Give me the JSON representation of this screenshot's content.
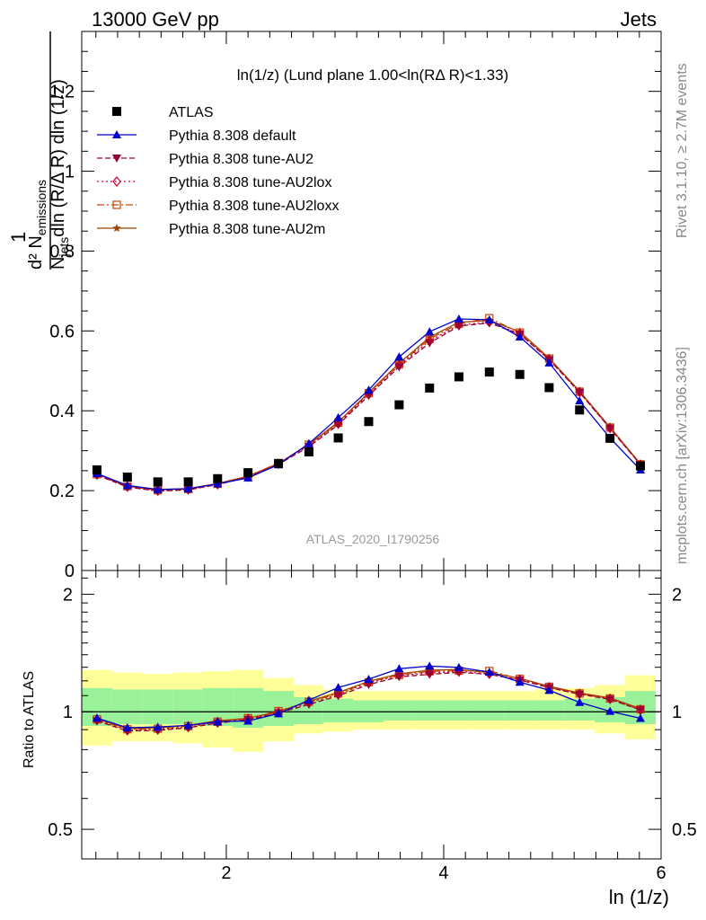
{
  "header": {
    "energy_label": "13000 GeV pp",
    "process_label": "Jets"
  },
  "side_labels": {
    "rivet": "Rivet 3.1.10, ≥ 2.7M events",
    "mcplots": "mcplots.cern.ch [arXiv:1306.3436]"
  },
  "chart_data": [
    {
      "type": "scatter",
      "title": "ln(1/z) (Lund plane 1.00<ln(RΔ R)<1.33)",
      "watermark": "ATLAS_2020_I1790256",
      "ylabel": "1/N_jets d²N_emissions/dln(R/Δ R) dln(1/z)",
      "xlabel": "ln (1/z)",
      "xlim": [
        0.67,
        6.0
      ],
      "ylim": [
        0,
        1.35
      ],
      "yticks": [
        0,
        0.2,
        0.4,
        0.6,
        0.8,
        1,
        1.2
      ],
      "ytick_labels": [
        "0",
        "0.2",
        "0.4",
        "0.6",
        "0.8",
        "1",
        "1.2"
      ],
      "legend_position": "top-left",
      "x": [
        0.81,
        1.09,
        1.37,
        1.65,
        1.92,
        2.2,
        2.48,
        2.76,
        3.03,
        3.31,
        3.59,
        3.87,
        4.14,
        4.42,
        4.7,
        4.97,
        5.25,
        5.53,
        5.81
      ],
      "series": [
        {
          "name": "ATLAS",
          "color": "#000000",
          "marker": "square",
          "line": "none",
          "values": [
            0.252,
            0.234,
            0.222,
            0.222,
            0.23,
            0.245,
            0.268,
            0.297,
            0.332,
            0.373,
            0.415,
            0.457,
            0.485,
            0.497,
            0.491,
            0.458,
            0.402,
            0.331,
            0.262
          ]
        },
        {
          "name": "Pythia 8.308 default",
          "color": "#0000cc",
          "marker": "triangle-up",
          "line": "solid",
          "values": [
            0.243,
            0.213,
            0.203,
            0.205,
            0.217,
            0.232,
            0.265,
            0.318,
            0.383,
            0.452,
            0.535,
            0.598,
            0.63,
            0.628,
            0.585,
            0.52,
            0.425,
            0.332,
            0.252
          ]
        },
        {
          "name": "Pythia 8.308 tune-AU2",
          "color": "#990033",
          "marker": "triangle-down",
          "line": "dashed",
          "values": [
            0.239,
            0.209,
            0.199,
            0.202,
            0.215,
            0.234,
            0.266,
            0.31,
            0.365,
            0.438,
            0.51,
            0.57,
            0.612,
            0.62,
            0.592,
            0.528,
            0.446,
            0.356,
            0.265
          ]
        },
        {
          "name": "Pythia 8.308 tune-AU2lox",
          "color": "#cc0033",
          "marker": "diamond-open",
          "line": "dotted",
          "values": [
            0.24,
            0.21,
            0.2,
            0.203,
            0.216,
            0.235,
            0.267,
            0.313,
            0.368,
            0.442,
            0.514,
            0.575,
            0.615,
            0.622,
            0.593,
            0.529,
            0.447,
            0.357,
            0.265
          ]
        },
        {
          "name": "Pythia 8.308 tune-AU2loxx",
          "color": "#cc4400",
          "marker": "square-open",
          "line": "dash-dot",
          "values": [
            0.241,
            0.211,
            0.201,
            0.204,
            0.217,
            0.236,
            0.269,
            0.315,
            0.37,
            0.444,
            0.516,
            0.58,
            0.618,
            0.632,
            0.596,
            0.531,
            0.448,
            0.358,
            0.266
          ]
        },
        {
          "name": "Pythia 8.308 tune-AU2m",
          "color": "#994400",
          "marker": "star",
          "line": "solid",
          "values": [
            0.242,
            0.212,
            0.202,
            0.205,
            0.218,
            0.236,
            0.268,
            0.316,
            0.372,
            0.446,
            0.519,
            0.584,
            0.622,
            0.626,
            0.598,
            0.532,
            0.449,
            0.359,
            0.267
          ]
        }
      ]
    },
    {
      "type": "line",
      "ylabel": "Ratio to ATLAS",
      "xlabel": "ln (1/z)",
      "xlim": [
        0.67,
        6.0
      ],
      "ylim": [
        0.42,
        2.3
      ],
      "log_y": true,
      "yticks": [
        0.5,
        1,
        2
      ],
      "ytick_labels": [
        "0.5",
        "1",
        "2"
      ],
      "xticks": [
        2,
        4,
        6
      ],
      "xtick_labels": [
        "2",
        "4",
        "6"
      ],
      "reference_line": 1,
      "band_edges": [
        0.67,
        0.95,
        1.23,
        1.51,
        1.78,
        2.06,
        2.34,
        2.62,
        2.89,
        3.17,
        3.45,
        3.73,
        4.0,
        4.28,
        4.56,
        4.84,
        5.11,
        5.39,
        5.67,
        5.95
      ],
      "bands": [
        {
          "name": "stat",
          "color": "#99f299",
          "lo": [
            0.92,
            0.93,
            0.93,
            0.93,
            0.92,
            0.91,
            0.92,
            0.93,
            0.94,
            0.94,
            0.95,
            0.95,
            0.95,
            0.95,
            0.95,
            0.95,
            0.95,
            0.94,
            0.93
          ],
          "hi": [
            1.15,
            1.14,
            1.14,
            1.14,
            1.15,
            1.15,
            1.13,
            1.09,
            1.08,
            1.07,
            1.07,
            1.07,
            1.07,
            1.07,
            1.07,
            1.07,
            1.08,
            1.09,
            1.13
          ]
        },
        {
          "name": "syst",
          "color": "#ffff99",
          "lo": [
            0.82,
            0.84,
            0.84,
            0.83,
            0.81,
            0.79,
            0.84,
            0.88,
            0.89,
            0.9,
            0.9,
            0.9,
            0.9,
            0.9,
            0.9,
            0.9,
            0.9,
            0.88,
            0.85
          ],
          "hi": [
            1.28,
            1.26,
            1.25,
            1.26,
            1.27,
            1.28,
            1.22,
            1.17,
            1.14,
            1.13,
            1.13,
            1.13,
            1.13,
            1.13,
            1.13,
            1.14,
            1.15,
            1.17,
            1.24
          ]
        }
      ],
      "series": [
        {
          "name": "Pythia 8.308 default",
          "values": [
            0.964,
            0.91,
            0.914,
            0.923,
            0.943,
            0.947,
            0.989,
            1.071,
            1.154,
            1.212,
            1.289,
            1.309,
            1.299,
            1.264,
            1.191,
            1.135,
            1.057,
            1.003,
            0.962
          ]
        },
        {
          "name": "Pythia 8.308 tune-AU2",
          "values": [
            0.948,
            0.893,
            0.896,
            0.91,
            0.935,
            0.955,
            0.993,
            1.044,
            1.099,
            1.174,
            1.229,
            1.247,
            1.262,
            1.247,
            1.206,
            1.153,
            1.109,
            1.076,
            1.011
          ]
        },
        {
          "name": "Pythia 8.308 tune-AU2lox",
          "values": [
            0.952,
            0.897,
            0.901,
            0.914,
            0.939,
            0.959,
            0.996,
            1.054,
            1.108,
            1.185,
            1.239,
            1.258,
            1.268,
            1.251,
            1.208,
            1.155,
            1.112,
            1.079,
            1.011
          ]
        },
        {
          "name": "Pythia 8.308 tune-AU2loxx",
          "values": [
            0.956,
            0.902,
            0.905,
            0.919,
            0.943,
            0.963,
            1.004,
            1.061,
            1.114,
            1.19,
            1.243,
            1.269,
            1.274,
            1.272,
            1.214,
            1.159,
            1.114,
            1.082,
            1.015
          ]
        },
        {
          "name": "Pythia 8.308 tune-AU2m",
          "values": [
            0.96,
            0.906,
            0.91,
            0.923,
            0.948,
            0.963,
            1.0,
            1.064,
            1.12,
            1.196,
            1.251,
            1.278,
            1.282,
            1.26,
            1.218,
            1.162,
            1.117,
            1.085,
            1.019
          ]
        }
      ]
    }
  ]
}
